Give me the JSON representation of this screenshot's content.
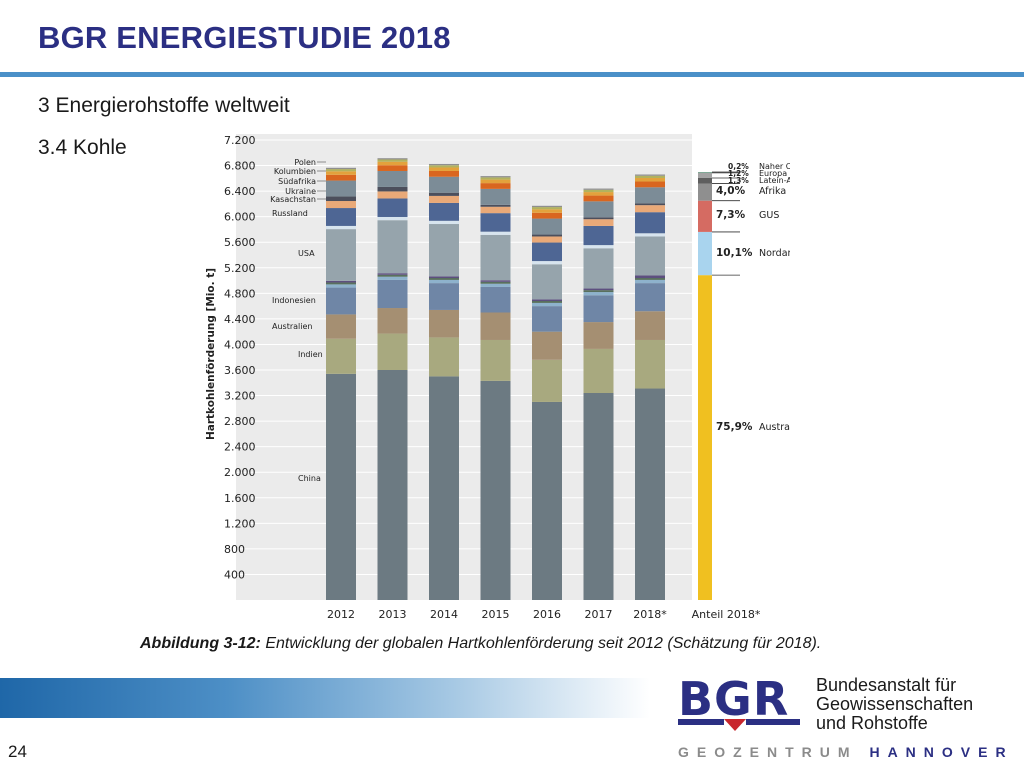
{
  "header": {
    "title": "BGR ENERGIESTUDIE 2018"
  },
  "section": {
    "heading": "3 Energierohstoffe weltweit",
    "subheading": "3.4 Kohle"
  },
  "caption": {
    "label": "Abbildung 3-12:",
    "text": "Entwicklung der globalen Hartkohlenförderung seit 2012 (Schätzung für 2018)."
  },
  "footer": {
    "page_number": "24",
    "logo_text": "BGR",
    "institution": [
      "Bundesanstalt für",
      "Geowissenschaften",
      "und Rohstoffe"
    ],
    "geozentrum_1": "GEOZENTRUM",
    "geozentrum_2": "HANNOVER"
  },
  "chart_data": {
    "type": "bar",
    "stacked": true,
    "ylabel": "Hartkohlenförderung [Mio. t]",
    "ylim": [
      0,
      7200
    ],
    "yticks": [
      400,
      800,
      1200,
      1600,
      2000,
      2400,
      2800,
      3200,
      3600,
      4000,
      4400,
      4800,
      5200,
      5600,
      6000,
      6400,
      6800,
      7200
    ],
    "ytick_labels": [
      "400",
      "800",
      "1.200",
      "1.600",
      "2.000",
      "2.400",
      "2.800",
      "3.200",
      "3.600",
      "4.000",
      "4.400",
      "4.800",
      "5.200",
      "5.600",
      "6.000",
      "6.400",
      "6.800",
      "7.200"
    ],
    "categories": [
      "2012",
      "2013",
      "2014",
      "2015",
      "2016",
      "2017",
      "2018*"
    ],
    "series": [
      {
        "name": "China",
        "color": "#6c7a82",
        "values": [
          3540,
          3600,
          3500,
          3430,
          3100,
          3240,
          3310
        ]
      },
      {
        "name": "Indien",
        "color": "#a8a97f",
        "values": [
          550,
          570,
          610,
          640,
          660,
          690,
          760
        ]
      },
      {
        "name": "Australien",
        "color": "#a58f72",
        "values": [
          380,
          400,
          430,
          430,
          440,
          420,
          450
        ]
      },
      {
        "name": "Indonesien",
        "color": "#6f86a6",
        "values": [
          420,
          440,
          420,
          400,
          400,
          420,
          440
        ]
      },
      {
        "name": "c1",
        "color": "#8eb2cc",
        "values": [
          50,
          50,
          50,
          50,
          50,
          50,
          50
        ]
      },
      {
        "name": "c2",
        "color": "#58705e",
        "values": [
          30,
          30,
          30,
          30,
          30,
          30,
          30
        ]
      },
      {
        "name": "c3",
        "color": "#5d4f7f",
        "values": [
          25,
          25,
          25,
          25,
          25,
          25,
          40
        ]
      },
      {
        "name": "USA",
        "color": "#96a4ac",
        "values": [
          810,
          830,
          820,
          710,
          550,
          630,
          610
        ]
      },
      {
        "name": "c4",
        "color": "#d7e4ee",
        "values": [
          50,
          50,
          50,
          50,
          50,
          50,
          50
        ]
      },
      {
        "name": "Russland",
        "color": "#4e6694",
        "values": [
          280,
          290,
          280,
          290,
          290,
          300,
          330
        ]
      },
      {
        "name": "Kasachstan",
        "color": "#e9a978",
        "values": [
          110,
          110,
          110,
          100,
          95,
          105,
          110
        ]
      },
      {
        "name": "Ukraine",
        "color": "#4c4f5c",
        "values": [
          70,
          70,
          50,
          30,
          30,
          30,
          30
        ]
      },
      {
        "name": "Südafrika",
        "color": "#7c8c97",
        "values": [
          250,
          250,
          250,
          250,
          250,
          250,
          250
        ]
      },
      {
        "name": "Kolumbien",
        "color": "#d9661f",
        "values": [
          90,
          90,
          90,
          90,
          90,
          90,
          90
        ]
      },
      {
        "name": "c5",
        "color": "#e3a23c",
        "values": [
          55,
          55,
          55,
          55,
          55,
          55,
          55
        ]
      },
      {
        "name": "Polen",
        "color": "#b2b25e",
        "values": [
          35,
          35,
          35,
          35,
          35,
          35,
          35
        ]
      },
      {
        "name": "c6",
        "color": "#8f8f8f",
        "values": [
          20,
          20,
          20,
          20,
          20,
          20,
          20
        ]
      }
    ],
    "segment_labels": [
      "Polen",
      "Kolumbien",
      "Südafrika",
      "Ukraine",
      "Kasachstan",
      "Russland",
      "USA",
      "Indonesien",
      "Australien",
      "Indien",
      "China"
    ],
    "share": {
      "label": "Anteil 2018*",
      "segments": [
        {
          "region": "Austral-Asien",
          "percent": "75,9%",
          "value": 75.9,
          "color": "#f0c020"
        },
        {
          "region": "Nordamerika",
          "percent": "10,1%",
          "value": 10.1,
          "color": "#a9d4ee"
        },
        {
          "region": "GUS",
          "percent": "7,3%",
          "value": 7.3,
          "color": "#d56b62"
        },
        {
          "region": "Afrika",
          "percent": "4,0%",
          "value": 4.0,
          "color": "#8f8f8f"
        },
        {
          "region": "Latein-Amerika",
          "percent": "1,3%",
          "value": 1.3,
          "color": "#5e5e5e"
        },
        {
          "region": "Europa",
          "percent": "1,2%",
          "value": 1.2,
          "color": "#a3a3a3"
        },
        {
          "region": "Naher Osten",
          "percent": "0,2%",
          "value": 0.2,
          "color": "#6f9e8a"
        }
      ]
    }
  }
}
